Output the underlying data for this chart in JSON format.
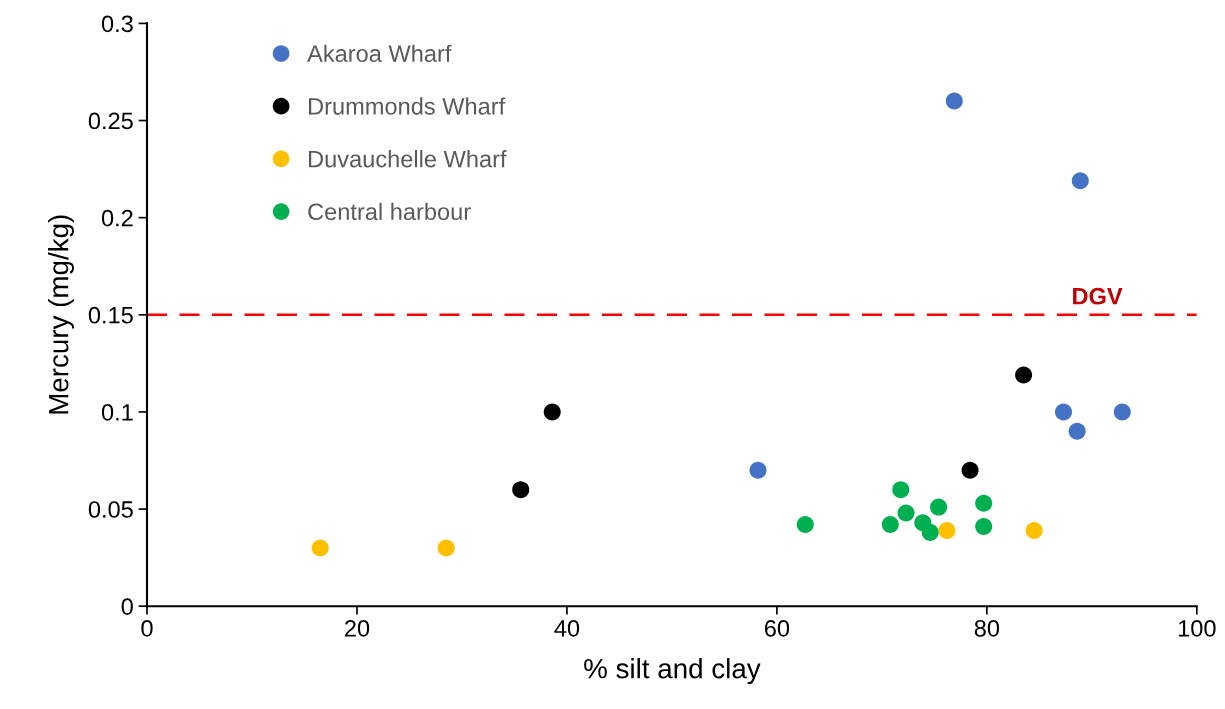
{
  "chart_data": {
    "type": "scatter",
    "xlabel": "% silt and clay",
    "ylabel": "Mercury (mg/kg)",
    "xlim": [
      0,
      100
    ],
    "xticks": [
      0,
      20,
      40,
      60,
      80,
      100
    ],
    "ylim": [
      0,
      0.3
    ],
    "yticks": [
      0,
      0.05,
      {
        "value": 0.1,
        "label": "0.1"
      },
      0.15,
      {
        "value": 0.2,
        "label": "0.2"
      },
      0.25,
      {
        "value": 0.3,
        "label": "0.3"
      }
    ],
    "grid": false,
    "legend": "top left",
    "marker": "circle",
    "series": [
      {
        "name": "Akaroa Wharf",
        "color": "#4472c4",
        "x": [
          76.9,
          88.9,
          87.3,
          88.6,
          92.9,
          58.2
        ],
        "values": [
          0.26,
          0.219,
          0.1,
          0.09,
          0.1,
          0.07
        ]
      },
      {
        "name": "Drummonds Wharf",
        "color": "#000000",
        "x": [
          38.6,
          35.6,
          83.5,
          78.4
        ],
        "values": [
          0.1,
          0.06,
          0.119,
          0.07
        ]
      },
      {
        "name": "Duvauchelle Wharf",
        "color": "#ffc000",
        "x": [
          16.5,
          28.5,
          76.2,
          84.5
        ],
        "values": [
          0.03,
          0.03,
          0.039,
          0.039
        ]
      },
      {
        "name": "Central harbour",
        "color": "#00b050",
        "x": [
          62.7,
          70.8,
          71.8,
          72.3,
          73.9,
          74.6,
          75.4,
          79.7,
          79.7
        ],
        "values": [
          0.042,
          0.042,
          0.06,
          0.048,
          0.043,
          0.038,
          0.051,
          0.053,
          0.041
        ]
      }
    ],
    "ref_lines": [
      {
        "axis": "y",
        "value": 0.15,
        "label": "DGV",
        "color": "#ff0000",
        "line_style": "dashed"
      }
    ]
  }
}
